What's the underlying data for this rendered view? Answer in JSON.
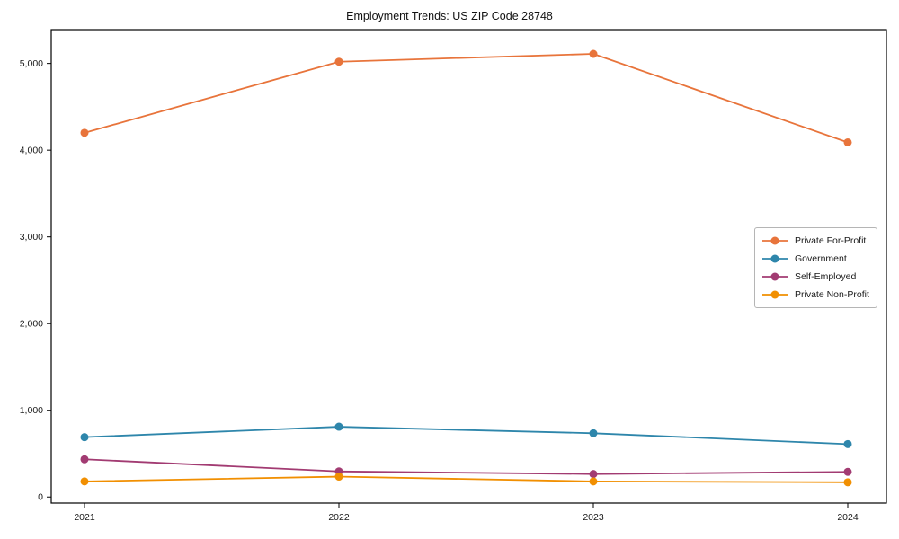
{
  "page": {
    "title": "Employment Trends: US ZIP Code 28748"
  },
  "chart_data": {
    "type": "line",
    "title": "Employment Trends: US ZIP Code 28748",
    "categories": [
      "2021",
      "2022",
      "2023",
      "2024"
    ],
    "series": [
      {
        "name": "Private For-Profit",
        "color": "#e8743b",
        "values": [
          4200,
          5020,
          5110,
          4090
        ]
      },
      {
        "name": "Government",
        "color": "#2e86ab",
        "values": [
          690,
          810,
          735,
          610
        ]
      },
      {
        "name": "Self-Employed",
        "color": "#a23b72",
        "values": [
          435,
          295,
          265,
          290
        ]
      },
      {
        "name": "Private Non-Profit",
        "color": "#f18f01",
        "values": [
          180,
          235,
          180,
          170
        ]
      }
    ],
    "yticks": [
      0,
      1000,
      2000,
      3000,
      4000,
      5000
    ],
    "ytick_labels": [
      "0",
      "1,000",
      "2,000",
      "3,000",
      "4,000",
      "5,000"
    ],
    "ylim": [
      -70,
      5390
    ],
    "xlabel": "",
    "ylabel": "",
    "grid": false,
    "legend_position": "center-right",
    "marker": "circle",
    "background": "#ffffff",
    "spine_color": "#000000"
  }
}
